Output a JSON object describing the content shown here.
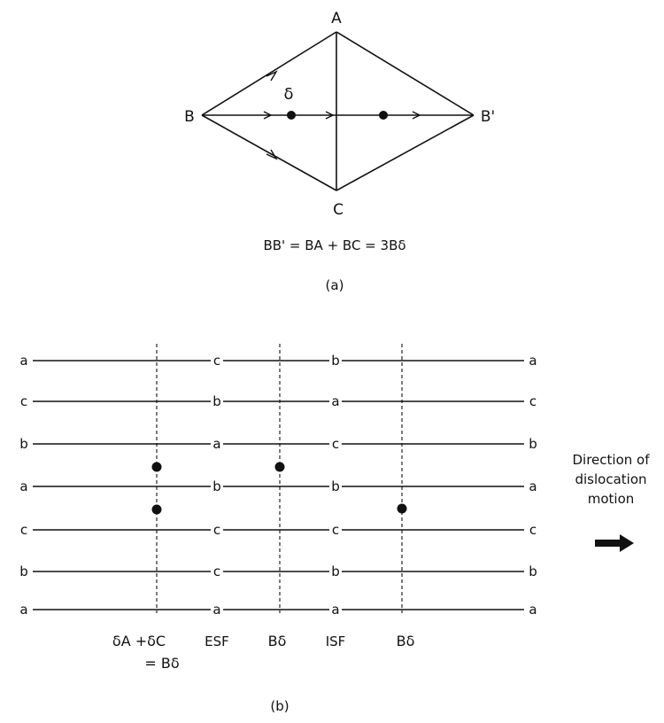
{
  "panel_a": {
    "vertices": {
      "A": "A",
      "B": "B",
      "B_prime": "B'",
      "C": "C"
    },
    "delta": "δ",
    "equation": "BB' = BA + BC = 3Bδ",
    "caption": "(a)"
  },
  "panel_b": {
    "row_labels_left": [
      "a",
      "c",
      "b",
      "a",
      "c",
      "b",
      "a"
    ],
    "row_labels_right": [
      "a",
      "c",
      "b",
      "a",
      "c",
      "b",
      "a"
    ],
    "column_c_labels": [
      "c",
      "b",
      "a",
      "b",
      "c",
      "c",
      "a"
    ],
    "column_e_labels": [
      "b",
      "a",
      "c",
      "b",
      "c",
      "b",
      "a"
    ],
    "bottom_labels": {
      "partial_1": "δA +δC",
      "partial_1_sum": "= Bδ",
      "esf": "ESF",
      "partial_2": "Bδ",
      "isf": "ISF",
      "partial_3": "Bδ"
    },
    "direction_text": [
      "Direction of",
      "dislocation",
      "motion"
    ],
    "caption": "(b)"
  }
}
